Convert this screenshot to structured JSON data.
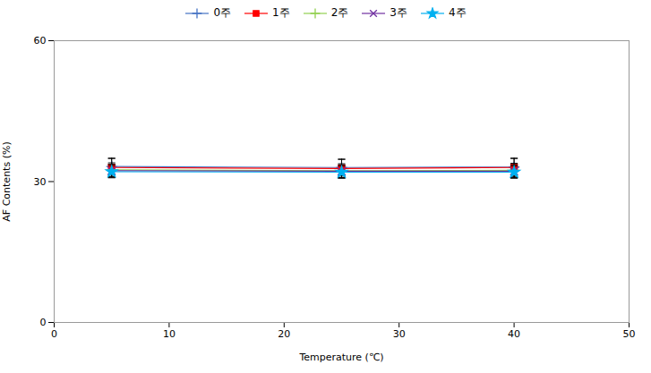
{
  "chart_data": {
    "type": "line",
    "x": [
      5,
      25,
      40
    ],
    "series": [
      {
        "name": "0주",
        "color": "#4472C4",
        "marker": "plus",
        "values": [
          33.2,
          33.0,
          33.1
        ],
        "yerr": [
          1.8,
          1.8,
          1.8
        ]
      },
      {
        "name": "1주",
        "color": "#FF0000",
        "marker": "square",
        "values": [
          33.0,
          32.8,
          33.0
        ],
        "yerr": [
          1.9,
          1.9,
          2.0
        ]
      },
      {
        "name": "2주",
        "color": "#92D050",
        "marker": "plus",
        "values": [
          32.5,
          32.3,
          32.4
        ],
        "yerr": [
          1.5,
          1.5,
          1.5
        ]
      },
      {
        "name": "3주",
        "color": "#7030A0",
        "marker": "times",
        "values": [
          32.3,
          32.2,
          32.2
        ],
        "yerr": [
          1.4,
          1.4,
          1.4
        ]
      },
      {
        "name": "4주",
        "color": "#00B0F0",
        "marker": "star",
        "values": [
          32.1,
          32.0,
          32.0
        ],
        "yerr": [
          1.3,
          1.3,
          1.3
        ]
      }
    ],
    "xlabel": "Temperature (℃)",
    "ylabel": "AF Contents (%)",
    "xlim": [
      0,
      50
    ],
    "ylim": [
      0,
      60
    ],
    "xticks": [
      0,
      10,
      20,
      30,
      40,
      50
    ],
    "yticks": [
      0,
      30,
      60
    ],
    "errorbar_color": "black",
    "legend": "top",
    "grid": false
  }
}
